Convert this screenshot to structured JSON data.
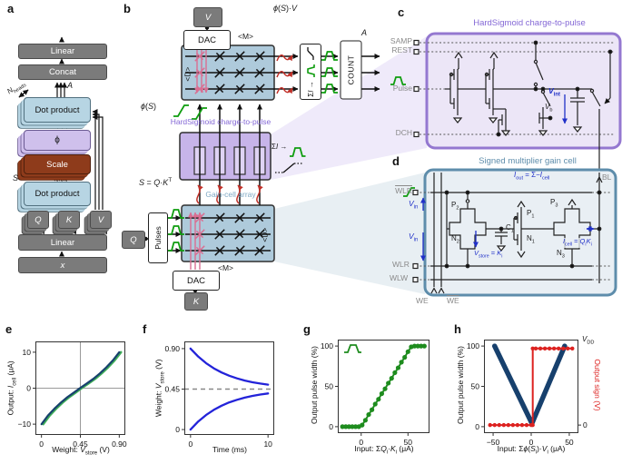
{
  "panels": {
    "a": {
      "letter": "a",
      "n_heads_html": "<i>N</i><sub>heads</sub>",
      "a_html": "<i>A</i>",
      "s_html": "<i>S</i>",
      "linear_top": "Linear",
      "concat": "Concat",
      "dot_top": "Dot product",
      "phi": "ϕ",
      "scale": "Scale",
      "dot_bottom": "Dot product",
      "q_html": "<i>Q</i>",
      "k_html": "<i>K</i>",
      "v_html": "<i>V</i>",
      "linear_bottom": "Linear",
      "x_html": "<i>x</i>"
    },
    "b": {
      "letter": "b",
      "v_html": "<i>V</i>",
      "k_html": "<i>K</i>",
      "q_html": "<i>Q</i>",
      "dac_top": "DAC",
      "dac_bottom": "DAC",
      "pulses": "Pulses",
      "count": "COUNT",
      "m_top": "<M>",
      "m_bottom": "<M>",
      "d_top": "<D>",
      "d_bottom": "<D>",
      "phi_s_v_html": "<i>ϕ</i>(<i>S</i>)·<i>V</i>",
      "phi_s_html": "<i>ϕ</i>(<i>S</i>)",
      "a_out_html": "<i>A</i>",
      "sum_box_html": "Σ<i>I</i> →",
      "sum_label_html": "Σ<i>I</i> →",
      "hs_title": "HardSigmoid charge-to-pulse",
      "gc_title": "Gain-cell array",
      "s_eq_html": "<i>S</i> = <i>Q</i>·<i>K</i><sup>T</sup>"
    },
    "c": {
      "letter": "c",
      "title": "HardSigmoid charge-to-pulse",
      "samp": "SAMP",
      "rest": "REST",
      "pulse": "Pulse",
      "dch": "DCH",
      "v_int_html": "<i>V</i><sub>int</sub>",
      "v_b_html": "<i>V</i><sub>b</sub>"
    },
    "d": {
      "letter": "d",
      "title": "Signed multiplier gain cell",
      "wlr_bar": "WLR",
      "wlr": "WLR",
      "wlw": "WLW",
      "we": "WE",
      "we_bar": "WE",
      "bl": "BL",
      "v_in_html": "<i>V</i><sub>in</sub>",
      "i_out_html": "<i>I</i><sub>out</sub> = Σ−<i>I</i><sub>cell</sub>",
      "i_cell_html": "<i>I</i><sub>cell</sub> = <i>Q</i><sub>i</sub><i>K</i><sub>i</sub>",
      "v_store_html": "<i>V</i><sub>store</sub> = <i>K</i><sub>i</sub>",
      "p2_html": "P<sub>2</sub>",
      "n2_html": "N<sub>2</sub>",
      "c1_html": "C<sub>1</sub>",
      "p1_html": "P<sub>1</sub>",
      "n1_html": "N<sub>1</sub>",
      "p3_html": "P<sub>3</sub>",
      "n3_html": "N<sub>3</sub>"
    },
    "e_letter": "e",
    "f_letter": "f",
    "g_letter": "g",
    "h_letter": "h",
    "h_vdd_html": "<i>V</i><sub>DD</sub>"
  },
  "chart_data": [
    {
      "type": "line",
      "name": "gain-cell transfer curve",
      "xlabel_html": "Weight: <i>V</i><sub>store</sub> (V)",
      "ylabel_html": "Output: <i>I</i><sub>cell</sub> (μA)",
      "xlim": [
        -0.07,
        0.97
      ],
      "ylim": [
        -13,
        13
      ],
      "x_ticks": [
        {
          "v": 0,
          "l": "0"
        },
        {
          "v": 0.45,
          "l": "0.45"
        },
        {
          "v": 0.9,
          "l": "0.90"
        }
      ],
      "y_ticks": [
        {
          "v": -10,
          "l": "−10"
        },
        {
          "v": 0,
          "l": "0"
        },
        {
          "v": 10,
          "l": "10"
        }
      ],
      "vlines": [
        0.45
      ],
      "hlines": [
        0
      ],
      "series": [
        {
          "name": "measured (green)",
          "color": "#3fae58",
          "width": 2.6,
          "points": [
            [
              0.02,
              -10
            ],
            [
              0.095,
              -7.6
            ],
            [
              0.17,
              -5.7
            ],
            [
              0.245,
              -4
            ],
            [
              0.32,
              -2.5
            ],
            [
              0.395,
              -1.2
            ],
            [
              0.47,
              0.1
            ],
            [
              0.545,
              1.3
            ],
            [
              0.62,
              2.6
            ],
            [
              0.695,
              4.1
            ],
            [
              0.77,
              5.8
            ],
            [
              0.845,
              7.7
            ],
            [
              0.92,
              10
            ]
          ]
        },
        {
          "name": "model (navy)",
          "color": "#17406d",
          "width": 2.2,
          "points": [
            [
              0,
              -10
            ],
            [
              0.075,
              -7.6
            ],
            [
              0.15,
              -5.7
            ],
            [
              0.225,
              -4
            ],
            [
              0.3,
              -2.5
            ],
            [
              0.375,
              -1.2
            ],
            [
              0.45,
              0.1
            ],
            [
              0.525,
              1.3
            ],
            [
              0.6,
              2.6
            ],
            [
              0.675,
              4.1
            ],
            [
              0.75,
              5.8
            ],
            [
              0.825,
              7.7
            ],
            [
              0.9,
              10
            ]
          ]
        }
      ]
    },
    {
      "type": "line",
      "name": "weight decay toward 0.45 V",
      "xlabel_html": "Time (ms)",
      "ylabel_html": "Weight: <i>V</i><sub>store</sub> (V)",
      "xlim": [
        -0.8,
        10.8
      ],
      "ylim": [
        -0.06,
        0.98
      ],
      "x_ticks": [
        {
          "v": 0,
          "l": "0"
        },
        {
          "v": 10,
          "l": "10"
        }
      ],
      "y_ticks": [
        {
          "v": 0,
          "l": "0"
        },
        {
          "v": 0.45,
          "l": "0.45"
        },
        {
          "v": 0.9,
          "l": "0.90"
        }
      ],
      "dashed_hlines": [
        0.45
      ],
      "series": [
        {
          "name": "decay from 0.90 V",
          "color": "#2323d9",
          "width": 2.3,
          "points": [
            [
              0,
              0.9
            ],
            [
              1,
              0.81
            ],
            [
              2,
              0.739
            ],
            [
              3,
              0.681
            ],
            [
              4,
              0.635
            ],
            [
              5,
              0.598
            ],
            [
              6,
              0.569
            ],
            [
              7,
              0.545
            ],
            [
              8,
              0.526
            ],
            [
              9,
              0.511
            ],
            [
              10,
              0.499
            ]
          ]
        },
        {
          "name": "rise from 0 V",
          "color": "#2323d9",
          "width": 2.3,
          "points": [
            [
              0,
              0
            ],
            [
              1,
              0.09
            ],
            [
              2,
              0.161
            ],
            [
              3,
              0.219
            ],
            [
              4,
              0.265
            ],
            [
              5,
              0.302
            ],
            [
              6,
              0.331
            ],
            [
              7,
              0.355
            ],
            [
              8,
              0.374
            ],
            [
              9,
              0.389
            ],
            [
              10,
              0.401
            ]
          ]
        }
      ]
    },
    {
      "type": "scatter",
      "name": "hard-sigmoid charge-to-pulse transfer",
      "xlabel_html": "Input: Σ<i>Q</i><sub>i</sub>·<i>K</i><sub>i</sub> (μA)",
      "ylabel_html": "Output pulse width (%)",
      "xlim": [
        -25,
        73
      ],
      "ylim": [
        -8,
        108
      ],
      "x_ticks": [
        {
          "v": 0,
          "l": "0"
        },
        {
          "v": 50,
          "l": "50"
        }
      ],
      "y_ticks": [
        {
          "v": 0,
          "l": "0"
        },
        {
          "v": 50,
          "l": "50"
        },
        {
          "v": 100,
          "l": "100"
        }
      ],
      "series": [
        {
          "name": "pulse width",
          "color": "#1e8c1e",
          "width": 2,
          "dots": true,
          "r": 2.6,
          "points": [
            [
              -20,
              0
            ],
            [
              -16.5,
              0
            ],
            [
              -13,
              0
            ],
            [
              -9.5,
              0
            ],
            [
              -6,
              0
            ],
            [
              -2.5,
              0
            ],
            [
              1,
              2
            ],
            [
              4.5,
              8
            ],
            [
              8,
              15
            ],
            [
              11.5,
              21
            ],
            [
              15,
              28
            ],
            [
              18.5,
              34
            ],
            [
              22,
              41
            ],
            [
              25.5,
              47
            ],
            [
              29,
              54
            ],
            [
              32.5,
              60
            ],
            [
              36,
              67
            ],
            [
              39.5,
              73
            ],
            [
              43,
              80
            ],
            [
              46.5,
              86
            ],
            [
              50,
              93
            ],
            [
              53.5,
              99
            ],
            [
              57,
              100
            ],
            [
              60.5,
              100
            ],
            [
              64,
              100
            ],
            [
              67.5,
              100
            ]
          ]
        }
      ]
    },
    {
      "type": "line",
      "name": "output pulse width and sign vs input",
      "xlabel_html": "Input: Σ<i>ϕ</i>(<i>S</i><sub>i</sub>)·<i>V</i><sub>i</sub> (μA)",
      "ylabel_html": "Output pulse width (%)",
      "y2label_html": "Output sign (V)",
      "xlim": [
        -62,
        62
      ],
      "ylim": [
        -8,
        108
      ],
      "x_ticks": [
        {
          "v": -50,
          "l": "−50"
        },
        {
          "v": 0,
          "l": "0"
        },
        {
          "v": 50,
          "l": "50"
        }
      ],
      "y_ticks": [
        {
          "v": 0,
          "l": "0"
        },
        {
          "v": 50,
          "l": "50"
        },
        {
          "v": 100,
          "l": "100"
        }
      ],
      "y2_ticks": [
        {
          "v": 2,
          "l": "0"
        }
      ],
      "series": [
        {
          "name": "pulse width (navy)",
          "color": "#17406d",
          "width": 5.5,
          "points": [
            [
              -48,
              100
            ],
            [
              1,
              4
            ],
            [
              44,
              100
            ]
          ]
        },
        {
          "name": "output sign (red)",
          "color": "#dd2220",
          "width": 2,
          "dots": true,
          "r": 2.2,
          "points": [
            [
              -54,
              2
            ],
            [
              -48,
              2
            ],
            [
              -42,
              2
            ],
            [
              -36,
              2
            ],
            [
              -30,
              2
            ],
            [
              -24,
              2
            ],
            [
              -18,
              2
            ],
            [
              -12,
              2
            ],
            [
              -6,
              2
            ],
            [
              0,
              2
            ],
            [
              2,
              2
            ],
            [
              2,
              97
            ],
            [
              6,
              97
            ],
            [
              12,
              97
            ],
            [
              18,
              97
            ],
            [
              24,
              97
            ],
            [
              30,
              97
            ],
            [
              36,
              97
            ],
            [
              42,
              97
            ],
            [
              48,
              97
            ],
            [
              54,
              97
            ]
          ]
        }
      ]
    }
  ]
}
